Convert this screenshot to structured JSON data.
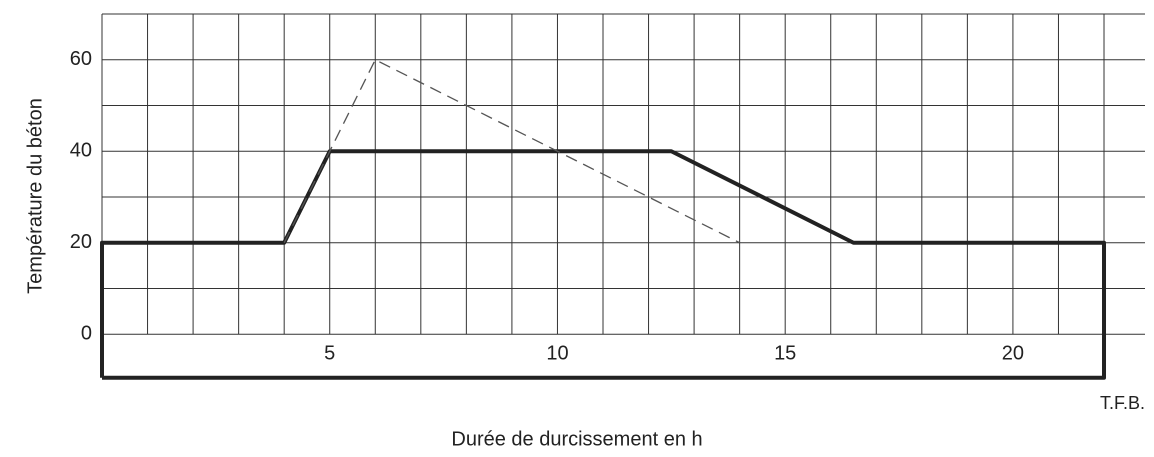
{
  "chart_data": {
    "type": "line",
    "y_label": "Température du béton",
    "x_label": "Durée de durcissement en h",
    "source": "T.F.B.",
    "xlim": [
      0,
      22.9
    ],
    "ylim": [
      -10,
      70
    ],
    "xticks": [
      5,
      10,
      15,
      20
    ],
    "yticks": [
      0,
      20,
      40,
      60
    ],
    "xgrid": [
      0,
      1,
      2,
      3,
      4,
      5,
      6,
      7,
      8,
      9,
      10,
      11,
      12,
      13,
      14,
      15,
      16,
      17,
      18,
      19,
      20,
      21,
      22
    ],
    "ygrid": [
      0,
      10,
      20,
      30,
      40,
      50,
      60,
      70
    ],
    "grid": true,
    "series": [
      {
        "color": "#222222",
        "dash": false,
        "width": 4,
        "x": [
          0,
          0,
          4,
          5,
          12.5,
          16.5,
          22,
          22,
          0
        ],
        "values": [
          -9.5,
          20,
          20,
          40,
          40,
          20,
          20,
          -9.5,
          -9.5
        ]
      },
      {
        "color": "#555555",
        "dash": true,
        "width": 1.3,
        "x": [
          4,
          6,
          14
        ],
        "values": [
          20,
          60,
          20
        ]
      }
    ]
  }
}
